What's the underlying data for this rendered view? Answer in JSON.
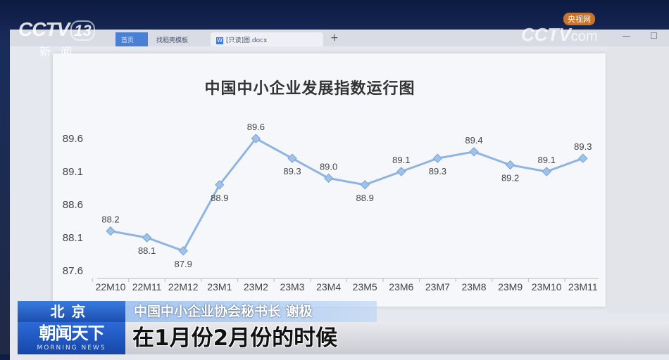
{
  "broadcast": {
    "channel_logo": "CCTV 13",
    "channel_logo_cctv": "CCTV",
    "channel_logo_number": "13",
    "channel_logo_sub": "新闻",
    "watermark": "CCTV.com",
    "watermark_cctv": "CCTV",
    "watermark_com": "com",
    "watermark_badge": "央视网",
    "location": "北京",
    "speaker": "中国中小企业协会秘书长 谢极",
    "show_name": "朝闻天下",
    "show_name_en": "MORNING NEWS",
    "subtitle": "在1月份2月份的时候"
  },
  "browser": {
    "tabs": [
      {
        "label": "首页"
      },
      {
        "label": "找稻壳模板"
      },
      {
        "label": "[只读]图.docx"
      }
    ],
    "new_tab": "+",
    "window_controls": "— ☐"
  },
  "chart_data": {
    "type": "line",
    "title": "中国中小企业发展指数运行图",
    "categories": [
      "22M10",
      "22M11",
      "22M12",
      "23M1",
      "23M2",
      "23M3",
      "23M4",
      "23M5",
      "23M6",
      "23M7",
      "23M8",
      "23M9",
      "23M10",
      "23M11"
    ],
    "values": [
      88.2,
      88.1,
      87.9,
      88.9,
      89.6,
      89.3,
      89.0,
      88.9,
      89.1,
      89.3,
      89.4,
      89.2,
      89.1,
      89.3
    ],
    "data_labels": [
      "88.2",
      "88.1",
      "87.9",
      "88.9",
      "89.6",
      "89.3",
      "89.0",
      "88.9",
      "89.1",
      "89.3",
      "89.4",
      "89.2",
      "89.1",
      "89.3"
    ],
    "yticks": [
      "87.6",
      "88.1",
      "88.6",
      "89.1",
      "89.6"
    ],
    "ylim": [
      87.6,
      89.6
    ],
    "grid": false,
    "line_color": "#8fb4e0",
    "marker_color": "#9ec2ea"
  }
}
